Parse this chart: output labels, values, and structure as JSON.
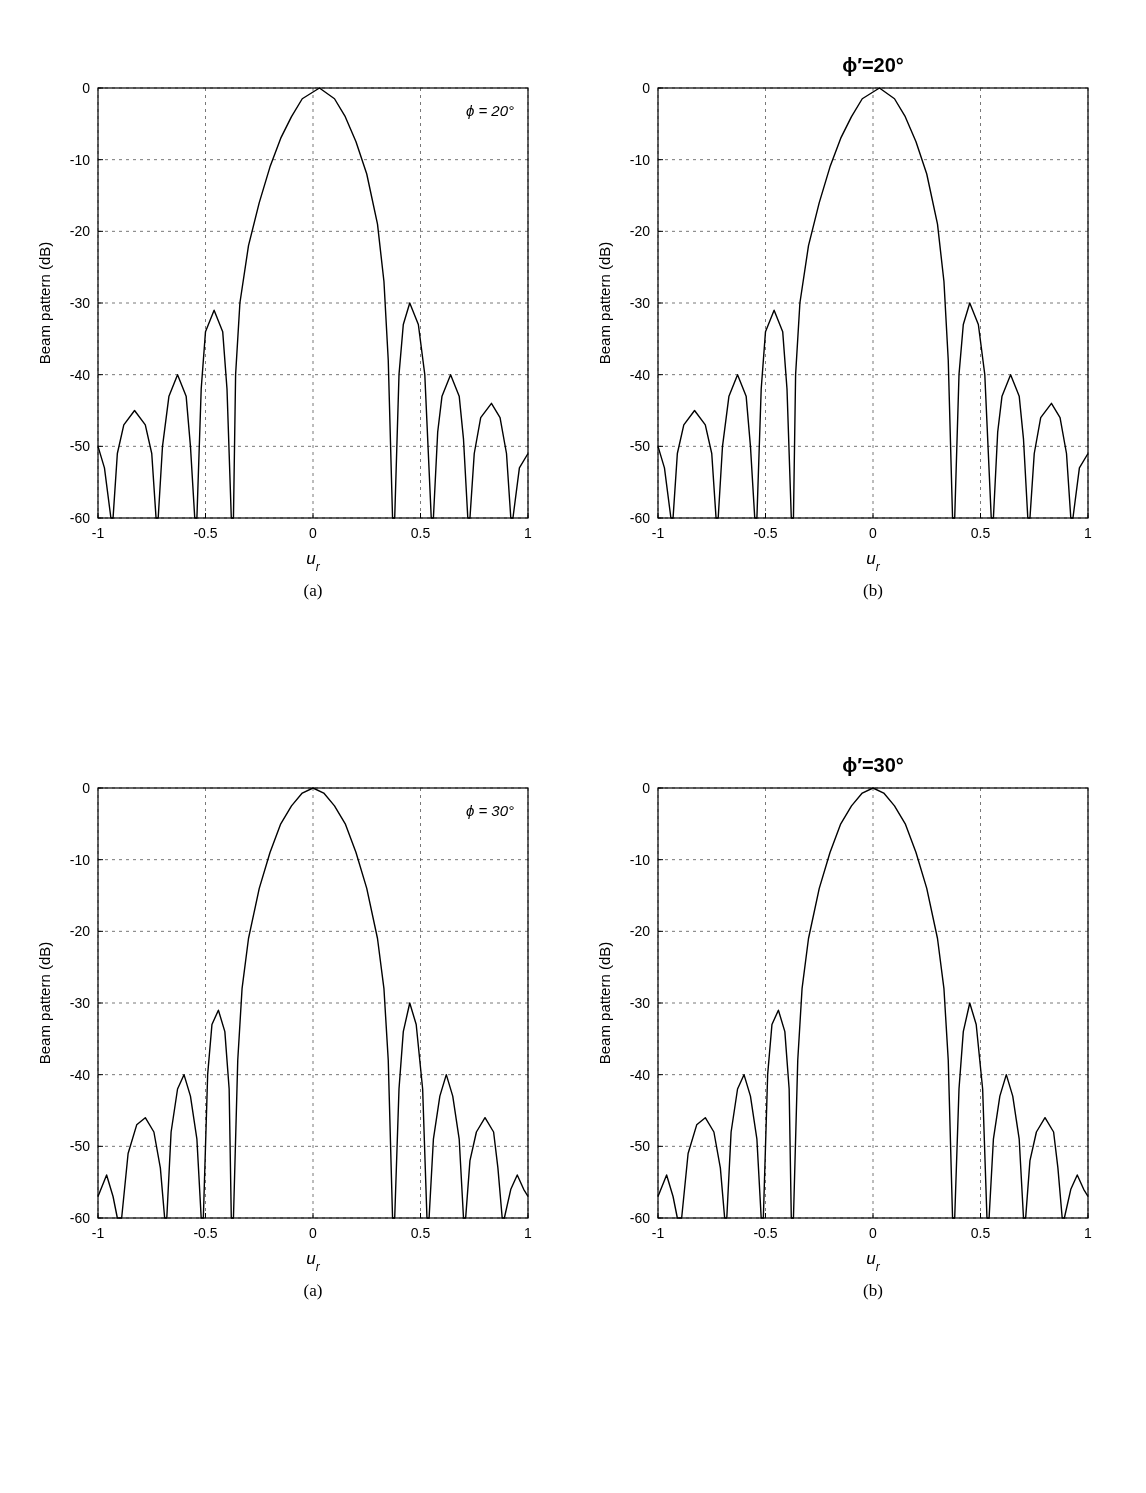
{
  "chart_data": [
    {
      "type": "line",
      "xlabel": "u$_{r}$",
      "ylabel": "Beam pattern (dB)",
      "annotations": [
        "ϕ = 20°",
        "(a)"
      ],
      "xlim": [
        -1,
        1
      ],
      "ylim": [
        -60,
        0
      ],
      "xticks": [
        -1,
        -0.5,
        0,
        0.5,
        1
      ],
      "yticks": [
        -60,
        -50,
        -40,
        -30,
        -20,
        -10,
        0
      ],
      "grid": true,
      "x": [
        -1,
        -0.97,
        -0.94,
        -0.93,
        -0.91,
        -0.88,
        -0.83,
        -0.78,
        -0.75,
        -0.73,
        -0.72,
        -0.7,
        -0.67,
        -0.63,
        -0.59,
        -0.57,
        -0.55,
        -0.54,
        -0.52,
        -0.5,
        -0.46,
        -0.42,
        -0.4,
        -0.38,
        -0.37,
        -0.36,
        -0.34,
        -0.3,
        -0.25,
        -0.2,
        -0.15,
        -0.1,
        -0.05,
        0.03,
        0.1,
        0.15,
        0.2,
        0.25,
        0.3,
        0.33,
        0.35,
        0.37,
        0.38,
        0.4,
        0.42,
        0.45,
        0.49,
        0.52,
        0.55,
        0.56,
        0.58,
        0.6,
        0.64,
        0.68,
        0.7,
        0.72,
        0.73,
        0.75,
        0.78,
        0.83,
        0.87,
        0.9,
        0.92,
        0.93,
        0.96,
        1
      ],
      "series": [
        {
          "color": "#000000",
          "values": [
            -50,
            -53,
            -60,
            -60,
            -51,
            -47,
            -45,
            -47,
            -51,
            -60,
            -60,
            -50,
            -43,
            -40,
            -43,
            -50,
            -60,
            -60,
            -42,
            -34,
            -31,
            -34,
            -42,
            -60,
            -60,
            -40,
            -30,
            -22,
            -16,
            -11,
            -7,
            -4,
            -1.5,
            0,
            -1.5,
            -4,
            -7.5,
            -12,
            -19,
            -27,
            -38,
            -60,
            -60,
            -40,
            -33,
            -30,
            -33,
            -40,
            -60,
            -60,
            -48,
            -43,
            -40,
            -43,
            -49,
            -60,
            -60,
            -51,
            -46,
            -44,
            -46,
            -51,
            -60,
            -60,
            -53,
            -51
          ]
        }
      ]
    },
    {
      "type": "line",
      "title": "ϕ′=20°",
      "xlabel": "u$_{r}$",
      "ylabel": "Beam pattern (dB)",
      "annotations": [
        "(b)"
      ],
      "xlim": [
        -1,
        1
      ],
      "ylim": [
        -60,
        0
      ],
      "xticks": [
        -1,
        -0.5,
        0,
        0.5,
        1
      ],
      "yticks": [
        -60,
        -50,
        -40,
        -30,
        -20,
        -10,
        0
      ],
      "grid": true,
      "x": [
        -1,
        -0.97,
        -0.94,
        -0.93,
        -0.91,
        -0.88,
        -0.83,
        -0.78,
        -0.75,
        -0.73,
        -0.72,
        -0.7,
        -0.67,
        -0.63,
        -0.59,
        -0.57,
        -0.55,
        -0.54,
        -0.52,
        -0.5,
        -0.46,
        -0.42,
        -0.4,
        -0.38,
        -0.37,
        -0.36,
        -0.34,
        -0.3,
        -0.25,
        -0.2,
        -0.15,
        -0.1,
        -0.05,
        0.03,
        0.1,
        0.15,
        0.2,
        0.25,
        0.3,
        0.33,
        0.35,
        0.37,
        0.38,
        0.4,
        0.42,
        0.45,
        0.49,
        0.52,
        0.55,
        0.56,
        0.58,
        0.6,
        0.64,
        0.68,
        0.7,
        0.72,
        0.73,
        0.75,
        0.78,
        0.83,
        0.87,
        0.9,
        0.92,
        0.93,
        0.96,
        1
      ],
      "series": [
        {
          "color": "#000000",
          "values": [
            -50,
            -53,
            -60,
            -60,
            -51,
            -47,
            -45,
            -47,
            -51,
            -60,
            -60,
            -50,
            -43,
            -40,
            -43,
            -50,
            -60,
            -60,
            -42,
            -34,
            -31,
            -34,
            -42,
            -60,
            -60,
            -40,
            -30,
            -22,
            -16,
            -11,
            -7,
            -4,
            -1.5,
            0,
            -1.5,
            -4,
            -7.5,
            -12,
            -19,
            -27,
            -38,
            -60,
            -60,
            -40,
            -33,
            -30,
            -33,
            -40,
            -60,
            -60,
            -48,
            -43,
            -40,
            -43,
            -49,
            -60,
            -60,
            -51,
            -46,
            -44,
            -46,
            -51,
            -60,
            -60,
            -53,
            -51
          ]
        }
      ]
    },
    {
      "type": "line",
      "xlabel": "u$_{r}$",
      "ylabel": "Beam pattern (dB)",
      "annotations": [
        "ϕ = 30°",
        "(a)"
      ],
      "xlim": [
        -1,
        1
      ],
      "ylim": [
        -60,
        0
      ],
      "xticks": [
        -1,
        -0.5,
        0,
        0.5,
        1
      ],
      "yticks": [
        -60,
        -50,
        -40,
        -30,
        -20,
        -10,
        0
      ],
      "grid": true,
      "x": [
        -1,
        -0.96,
        -0.93,
        -0.91,
        -0.89,
        -0.86,
        -0.82,
        -0.78,
        -0.74,
        -0.71,
        -0.69,
        -0.68,
        -0.66,
        -0.63,
        -0.6,
        -0.57,
        -0.54,
        -0.52,
        -0.51,
        -0.49,
        -0.47,
        -0.44,
        -0.41,
        -0.39,
        -0.38,
        -0.37,
        -0.35,
        -0.33,
        -0.3,
        -0.25,
        -0.2,
        -0.15,
        -0.1,
        -0.05,
        0,
        0.05,
        0.1,
        0.15,
        0.2,
        0.25,
        0.3,
        0.33,
        0.35,
        0.37,
        0.38,
        0.4,
        0.42,
        0.45,
        0.48,
        0.51,
        0.53,
        0.54,
        0.56,
        0.59,
        0.62,
        0.65,
        0.68,
        0.7,
        0.71,
        0.73,
        0.76,
        0.8,
        0.84,
        0.86,
        0.88,
        0.89,
        0.92,
        0.95,
        0.98,
        1
      ],
      "series": [
        {
          "color": "#000000",
          "values": [
            -57,
            -54,
            -57,
            -60,
            -60,
            -51,
            -47,
            -46,
            -48,
            -53,
            -60,
            -60,
            -48,
            -42,
            -40,
            -43,
            -49,
            -60,
            -60,
            -40,
            -33,
            -31,
            -34,
            -42,
            -60,
            -60,
            -38,
            -28,
            -21,
            -14,
            -9,
            -5,
            -2.5,
            -0.7,
            0,
            -0.7,
            -2.5,
            -5,
            -9,
            -14,
            -21,
            -28,
            -38,
            -60,
            -60,
            -42,
            -34,
            -30,
            -33,
            -42,
            -60,
            -60,
            -49,
            -43,
            -40,
            -43,
            -49,
            -60,
            -60,
            -52,
            -48,
            -46,
            -48,
            -53,
            -60,
            -60,
            -56,
            -54,
            -56,
            -57
          ]
        }
      ]
    },
    {
      "type": "line",
      "title": "ϕ′=30°",
      "xlabel": "u$_{r}$",
      "ylabel": "Beam pattern (dB)",
      "annotations": [
        "(b)"
      ],
      "xlim": [
        -1,
        1
      ],
      "ylim": [
        -60,
        0
      ],
      "xticks": [
        -1,
        -0.5,
        0,
        0.5,
        1
      ],
      "yticks": [
        -60,
        -50,
        -40,
        -30,
        -20,
        -10,
        0
      ],
      "grid": true,
      "x": [
        -1,
        -0.96,
        -0.93,
        -0.91,
        -0.89,
        -0.86,
        -0.82,
        -0.78,
        -0.74,
        -0.71,
        -0.69,
        -0.68,
        -0.66,
        -0.63,
        -0.6,
        -0.57,
        -0.54,
        -0.52,
        -0.51,
        -0.49,
        -0.47,
        -0.44,
        -0.41,
        -0.39,
        -0.38,
        -0.37,
        -0.35,
        -0.33,
        -0.3,
        -0.25,
        -0.2,
        -0.15,
        -0.1,
        -0.05,
        0,
        0.05,
        0.1,
        0.15,
        0.2,
        0.25,
        0.3,
        0.33,
        0.35,
        0.37,
        0.38,
        0.4,
        0.42,
        0.45,
        0.48,
        0.51,
        0.53,
        0.54,
        0.56,
        0.59,
        0.62,
        0.65,
        0.68,
        0.7,
        0.71,
        0.73,
        0.76,
        0.8,
        0.84,
        0.86,
        0.88,
        0.89,
        0.92,
        0.95,
        0.98,
        1
      ],
      "series": [
        {
          "color": "#000000",
          "values": [
            -57,
            -54,
            -57,
            -60,
            -60,
            -51,
            -47,
            -46,
            -48,
            -53,
            -60,
            -60,
            -48,
            -42,
            -40,
            -43,
            -49,
            -60,
            -60,
            -40,
            -33,
            -31,
            -34,
            -42,
            -60,
            -60,
            -38,
            -28,
            -21,
            -14,
            -9,
            -5,
            -2.5,
            -0.7,
            0,
            -0.7,
            -2.5,
            -5,
            -9,
            -14,
            -21,
            -28,
            -38,
            -60,
            -60,
            -42,
            -34,
            -30,
            -33,
            -42,
            -60,
            -60,
            -49,
            -43,
            -40,
            -43,
            -49,
            -60,
            -60,
            -52,
            -48,
            -46,
            -48,
            -53,
            -60,
            -60,
            -56,
            -54,
            -56,
            -57
          ]
        }
      ]
    }
  ]
}
